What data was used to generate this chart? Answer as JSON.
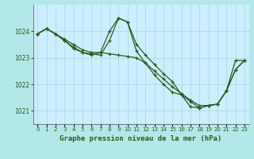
{
  "background_color": "#b3e8e8",
  "plot_bg_color": "#cceeff",
  "grid_color": "#aadddd",
  "line_color": "#2d5a1b",
  "xlabel": "Graphe pression niveau de la mer (hPa)",
  "xlabel_fontsize": 6.5,
  "ylabel_ticks": [
    1021,
    1022,
    1023,
    1024
  ],
  "ylabel_fontsize": 5.5,
  "xlim": [
    -0.5,
    23.5
  ],
  "ylim": [
    1020.5,
    1025.0
  ],
  "series": [
    [
      1023.9,
      1024.1,
      1023.9,
      1023.7,
      1023.5,
      1023.3,
      1023.2,
      1023.2,
      1023.15,
      1023.1,
      1023.05,
      1023.0,
      1022.8,
      1022.5,
      1022.2,
      1021.9,
      1021.65,
      1021.4,
      1021.2,
      1021.2,
      1021.25,
      1021.75,
      1022.9,
      1022.9
    ],
    [
      1023.9,
      1024.1,
      1023.9,
      1023.65,
      1023.4,
      1023.2,
      1023.15,
      1023.1,
      1023.65,
      1024.5,
      1024.35,
      1023.5,
      1023.1,
      1022.75,
      1022.4,
      1022.1,
      1021.6,
      1021.35,
      1021.1,
      1021.2,
      1021.25,
      1021.75,
      1022.55,
      1022.9
    ],
    [
      1023.9,
      1024.1,
      1023.9,
      1023.65,
      1023.35,
      1023.2,
      1023.1,
      1023.2,
      1024.0,
      1024.5,
      1024.35,
      1023.25,
      1022.8,
      1022.35,
      1022.0,
      1021.7,
      1021.6,
      1021.15,
      1021.1,
      1021.2,
      1021.25,
      1021.75,
      1022.55,
      1022.9
    ]
  ]
}
